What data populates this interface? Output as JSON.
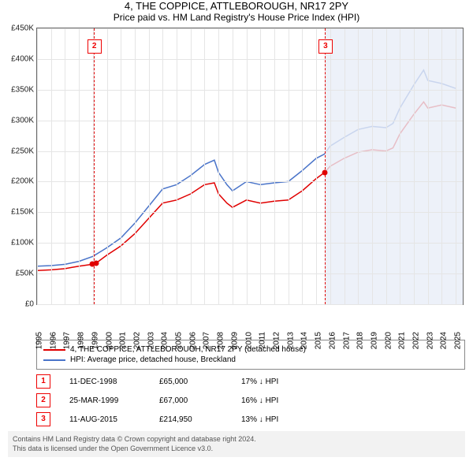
{
  "title": "4, THE COPPICE, ATTLEBOROUGH, NR17 2PY",
  "subtitle": "Price paid vs. HM Land Registry's House Price Index (HPI)",
  "chart": {
    "type": "line",
    "background_color": "#ffffff",
    "grid_color": "#e5e5e5",
    "border_color": "#666666",
    "y": {
      "min": 0,
      "max": 450000,
      "step": 50000,
      "prefix": "£",
      "suffix": "K",
      "divisor": 1000,
      "label_fontsize": 10
    },
    "x": {
      "min": 1995,
      "max": 2025.5,
      "ticks": [
        1995,
        1996,
        1997,
        1998,
        1999,
        2000,
        2001,
        2002,
        2003,
        2004,
        2005,
        2006,
        2007,
        2008,
        2009,
        2010,
        2011,
        2012,
        2013,
        2014,
        2015,
        2016,
        2017,
        2018,
        2019,
        2020,
        2021,
        2022,
        2023,
        2024,
        2025
      ],
      "label_fontsize": 10
    },
    "shade_from_x": 2015.6,
    "shade_color": "#e8eef7",
    "series": [
      {
        "name": "property",
        "label": "4, THE COPPICE, ATTLEBOROUGH, NR17 2PY (detached house)",
        "color": "#e00000",
        "width": 1.5,
        "points": [
          [
            1995,
            55000
          ],
          [
            1996,
            56000
          ],
          [
            1997,
            58000
          ],
          [
            1997.5,
            60000
          ],
          [
            1998,
            62000
          ],
          [
            1998.94,
            65000
          ],
          [
            1999.23,
            67000
          ],
          [
            2000,
            80000
          ],
          [
            2001,
            95000
          ],
          [
            2002,
            115000
          ],
          [
            2003,
            140000
          ],
          [
            2004,
            165000
          ],
          [
            2005,
            170000
          ],
          [
            2006,
            180000
          ],
          [
            2007,
            195000
          ],
          [
            2007.7,
            198000
          ],
          [
            2008,
            180000
          ],
          [
            2008.6,
            165000
          ],
          [
            2009,
            158000
          ],
          [
            2010,
            170000
          ],
          [
            2011,
            165000
          ],
          [
            2012,
            168000
          ],
          [
            2013,
            170000
          ],
          [
            2014,
            185000
          ],
          [
            2015,
            205000
          ],
          [
            2015.6,
            214950
          ],
          [
            2016,
            225000
          ],
          [
            2017,
            238000
          ],
          [
            2018,
            248000
          ],
          [
            2019,
            252000
          ],
          [
            2020,
            250000
          ],
          [
            2020.5,
            255000
          ],
          [
            2021,
            278000
          ],
          [
            2022,
            310000
          ],
          [
            2022.7,
            330000
          ],
          [
            2023,
            320000
          ],
          [
            2024,
            325000
          ],
          [
            2025,
            320000
          ]
        ]
      },
      {
        "name": "hpi",
        "label": "HPI: Average price, detached house, Breckland",
        "color": "#4a74c9",
        "width": 1.5,
        "points": [
          [
            1995,
            62000
          ],
          [
            1996,
            63000
          ],
          [
            1997,
            65000
          ],
          [
            1998,
            70000
          ],
          [
            1999,
            78000
          ],
          [
            2000,
            92000
          ],
          [
            2001,
            108000
          ],
          [
            2002,
            132000
          ],
          [
            2003,
            160000
          ],
          [
            2004,
            188000
          ],
          [
            2005,
            195000
          ],
          [
            2006,
            210000
          ],
          [
            2007,
            228000
          ],
          [
            2007.7,
            235000
          ],
          [
            2008,
            215000
          ],
          [
            2008.6,
            195000
          ],
          [
            2009,
            185000
          ],
          [
            2010,
            200000
          ],
          [
            2011,
            195000
          ],
          [
            2012,
            198000
          ],
          [
            2013,
            200000
          ],
          [
            2014,
            218000
          ],
          [
            2015,
            238000
          ],
          [
            2015.6,
            245000
          ],
          [
            2016,
            258000
          ],
          [
            2017,
            272000
          ],
          [
            2018,
            285000
          ],
          [
            2019,
            290000
          ],
          [
            2020,
            288000
          ],
          [
            2020.5,
            295000
          ],
          [
            2021,
            320000
          ],
          [
            2022,
            358000
          ],
          [
            2022.7,
            382000
          ],
          [
            2023,
            365000
          ],
          [
            2024,
            360000
          ],
          [
            2025,
            352000
          ]
        ]
      }
    ],
    "sale_points": [
      {
        "x": 1998.94,
        "y": 65000,
        "color": "#e00000"
      },
      {
        "x": 1999.23,
        "y": 67000,
        "color": "#e00000"
      },
      {
        "x": 2015.61,
        "y": 214950,
        "color": "#e00000"
      }
    ],
    "markers": [
      {
        "n": "2",
        "x": 1999.05,
        "box_top_pct": 4,
        "line_color": "#e00000"
      },
      {
        "n": "3",
        "x": 2015.61,
        "box_top_pct": 4,
        "line_color": "#e00000"
      }
    ]
  },
  "legend": {
    "rows": [
      {
        "color": "#e00000",
        "label": "4, THE COPPICE, ATTLEBOROUGH, NR17 2PY (detached house)"
      },
      {
        "color": "#4a74c9",
        "label": "HPI: Average price, detached house, Breckland"
      }
    ]
  },
  "transactions": [
    {
      "n": "1",
      "date": "11-DEC-1998",
      "price": "£65,000",
      "diff": "17% ↓ HPI"
    },
    {
      "n": "2",
      "date": "25-MAR-1999",
      "price": "£67,000",
      "diff": "16% ↓ HPI"
    },
    {
      "n": "3",
      "date": "11-AUG-2015",
      "price": "£214,950",
      "diff": "13% ↓ HPI"
    }
  ],
  "attribution": {
    "line1": "Contains HM Land Registry data © Crown copyright and database right 2024.",
    "line2": "This data is licensed under the Open Government Licence v3.0."
  }
}
